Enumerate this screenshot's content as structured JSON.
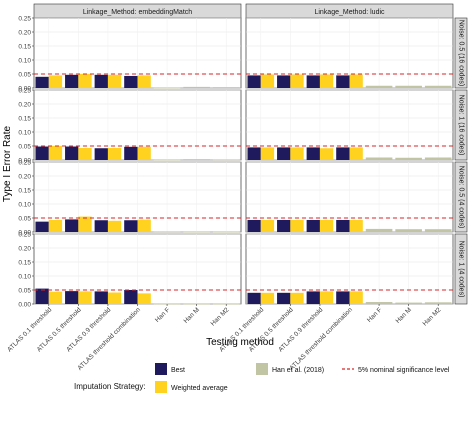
{
  "chart_data": {
    "type": "bar",
    "ylabel": "Type I Error Rate",
    "xlabel": "Testing method",
    "ylim": [
      0,
      0.25
    ],
    "yticks": [
      "0.00",
      "0.05",
      "0.10",
      "0.15",
      "0.20",
      "0.25"
    ],
    "nominal_level": 0.05,
    "categories": [
      "ATLAS 0.1 threshold",
      "ATLAS 0.5 threshold",
      "ATLAS 0.9 threshold",
      "ATLAS threshold combination",
      "Han F",
      "Han M",
      "Han M2"
    ],
    "col_facets": [
      "Linkage_Method: embeddingMatch",
      "Linkage_Method: ludic"
    ],
    "row_facets": [
      "Noise: 0.5 (16 codes)",
      "Noise: 1 (16 codes)",
      "Noise: 0.5 (4 codes)",
      "Noise: 1 (4 codes)"
    ],
    "panels": [
      {
        "col": 0,
        "row": 0,
        "best": [
          0.04,
          0.047,
          0.047,
          0.043
        ],
        "weighted": [
          0.045,
          0.05,
          0.047,
          0.045
        ],
        "han": [
          0.001,
          0.004,
          0.003
        ]
      },
      {
        "col": 1,
        "row": 0,
        "best": [
          0.045,
          0.045,
          0.045,
          0.045
        ],
        "weighted": [
          0.048,
          0.048,
          0.048,
          0.048
        ],
        "han": [
          0.008,
          0.008,
          0.008
        ]
      },
      {
        "col": 0,
        "row": 1,
        "best": [
          0.048,
          0.048,
          0.042,
          0.047
        ],
        "weighted": [
          0.05,
          0.043,
          0.043,
          0.047
        ],
        "han": [
          0.001,
          0.003,
          0.002
        ]
      },
      {
        "col": 1,
        "row": 1,
        "best": [
          0.045,
          0.045,
          0.045,
          0.045
        ],
        "weighted": [
          0.045,
          0.045,
          0.042,
          0.045
        ],
        "han": [
          0.009,
          0.008,
          0.009
        ]
      },
      {
        "col": 0,
        "row": 2,
        "best": [
          0.037,
          0.045,
          0.042,
          0.042
        ],
        "weighted": [
          0.043,
          0.055,
          0.04,
          0.044
        ],
        "han": [
          0.002,
          0.001,
          0.001
        ]
      },
      {
        "col": 1,
        "row": 2,
        "best": [
          0.043,
          0.043,
          0.043,
          0.043
        ],
        "weighted": [
          0.043,
          0.043,
          0.043,
          0.043
        ],
        "han": [
          0.011,
          0.01,
          0.01
        ]
      },
      {
        "col": 0,
        "row": 3,
        "best": [
          0.055,
          0.046,
          0.045,
          0.05
        ],
        "weighted": [
          0.044,
          0.045,
          0.041,
          0.038
        ],
        "han": [
          0.001,
          0.001,
          0.001
        ]
      },
      {
        "col": 1,
        "row": 3,
        "best": [
          0.04,
          0.04,
          0.045,
          0.045
        ],
        "weighted": [
          0.04,
          0.04,
          0.045,
          0.045
        ],
        "han": [
          0.007,
          0.005,
          0.006
        ]
      }
    ],
    "legend": {
      "title": "Imputation Strategy:",
      "items": [
        {
          "label": "Best",
          "color": "#1f1a5e"
        },
        {
          "label": "Weighted average",
          "color": "#ffd21f"
        },
        {
          "label": "Han et al. (2018)",
          "color": "#c2c5a4"
        },
        {
          "label": "5% nominal significance level",
          "color": "#d62728",
          "style": "dashed"
        }
      ]
    },
    "colors": {
      "best": "#1f1a5e",
      "weighted": "#ffd21f",
      "han": "#c2c5a4",
      "nominal": "#d62728",
      "strip": "#d9d9d9"
    }
  }
}
